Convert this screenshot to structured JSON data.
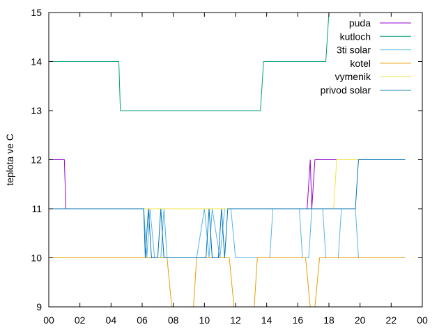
{
  "chart_data": {
    "type": "line",
    "title": "",
    "xlabel": "",
    "ylabel": "teplota ve C",
    "xlim": [
      "00",
      "24"
    ],
    "ylim": [
      9,
      15
    ],
    "xticks": [
      "00",
      "02",
      "04",
      "06",
      "08",
      "10",
      "12",
      "14",
      "16",
      "18",
      "20",
      "22",
      "00"
    ],
    "yticks": [
      9,
      10,
      11,
      12,
      13,
      14,
      15
    ],
    "grid": false,
    "legend_position": "top-right",
    "series": [
      {
        "name": "puda",
        "color": "#9400d3",
        "x": [
          0,
          1.0,
          1.1,
          16.6,
          16.8,
          16.9,
          17.1,
          22.9
        ],
        "y": [
          12,
          12,
          11,
          11,
          12,
          11,
          12,
          12
        ]
      },
      {
        "name": "kutloch",
        "color": "#009e73",
        "x": [
          0,
          4.5,
          4.6,
          13.6,
          13.8,
          17.8,
          18.0
        ],
        "y": [
          14,
          14,
          13,
          13,
          14,
          14,
          15
        ]
      },
      {
        "name": "3ti solar",
        "color": "#56b4e9",
        "x": [
          0,
          6.1,
          6.3,
          6.5,
          6.8,
          7.2,
          7.4,
          7.6,
          9.5,
          10.0,
          10.3,
          10.5,
          11.0,
          11.3,
          11.7,
          12.0,
          14.2,
          14.4,
          16.1,
          16.3,
          16.7,
          16.9,
          17.6,
          17.8,
          18.6,
          18.8,
          19.7,
          19.9,
          22.9
        ],
        "y": [
          11,
          11,
          10,
          11,
          10,
          10,
          11,
          10,
          10,
          11,
          10,
          11,
          10,
          11,
          11,
          10,
          10,
          11,
          11,
          10,
          10,
          11,
          11,
          10,
          10,
          11,
          11,
          10,
          10
        ]
      },
      {
        "name": "kotel",
        "color": "#e69f00",
        "x": [
          0,
          7.6,
          7.9,
          9.3,
          9.5,
          11.6,
          11.9,
          13.2,
          13.4,
          16.5,
          16.8,
          17.1,
          17.4,
          22.9
        ],
        "y": [
          10,
          10,
          9,
          9,
          10,
          10,
          9,
          9,
          10,
          10,
          9,
          9,
          10,
          10
        ]
      },
      {
        "name": "vymenik",
        "color": "#f0e442",
        "x": [
          0,
          18.3,
          18.5,
          22.9
        ],
        "y": [
          11,
          11,
          12,
          12
        ]
      },
      {
        "name": "privod solar",
        "color": "#0072b2",
        "x": [
          0,
          6.1,
          6.2,
          6.4,
          6.6,
          6.8,
          7.0,
          7.2,
          7.4,
          7.6,
          10.1,
          10.3,
          10.5,
          10.9,
          11.1,
          11.3,
          11.5,
          19.7,
          19.9,
          22.9
        ],
        "y": [
          11,
          11,
          10,
          11,
          10,
          10,
          10,
          11,
          10,
          10,
          10,
          11,
          10,
          10,
          11,
          10,
          11,
          11,
          12,
          12
        ]
      }
    ]
  }
}
